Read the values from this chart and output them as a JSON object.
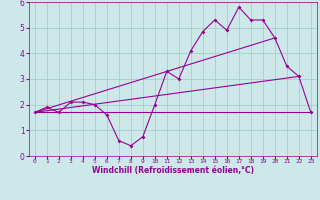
{
  "xlabel": "Windchill (Refroidissement éolien,°C)",
  "bg_color": "#cce8e8",
  "grid_color": "#aacccc",
  "line_color": "#990099",
  "xlim": [
    -0.5,
    23.5
  ],
  "ylim": [
    0,
    6
  ],
  "xticks": [
    0,
    1,
    2,
    3,
    4,
    5,
    6,
    7,
    8,
    9,
    10,
    11,
    12,
    13,
    14,
    15,
    16,
    17,
    18,
    19,
    20,
    21,
    22,
    23
  ],
  "yticks": [
    0,
    1,
    2,
    3,
    4,
    5,
    6
  ],
  "series1_x": [
    0,
    1,
    2,
    3,
    4,
    5,
    6,
    7,
    8,
    9,
    10,
    11,
    12,
    13,
    14,
    15,
    16,
    17,
    18,
    19,
    20,
    21,
    22,
    23
  ],
  "series1_y": [
    1.7,
    1.9,
    1.7,
    2.1,
    2.1,
    2.0,
    1.6,
    0.6,
    0.4,
    0.75,
    2.0,
    3.3,
    3.0,
    4.1,
    4.85,
    5.3,
    4.9,
    5.8,
    5.3,
    5.3,
    4.6,
    3.5,
    3.1,
    1.7
  ],
  "series2_x": [
    0,
    23
  ],
  "series2_y": [
    1.7,
    1.7
  ],
  "series3_x": [
    0,
    20
  ],
  "series3_y": [
    1.7,
    4.6
  ],
  "series4_x": [
    0,
    22
  ],
  "series4_y": [
    1.7,
    3.1
  ]
}
